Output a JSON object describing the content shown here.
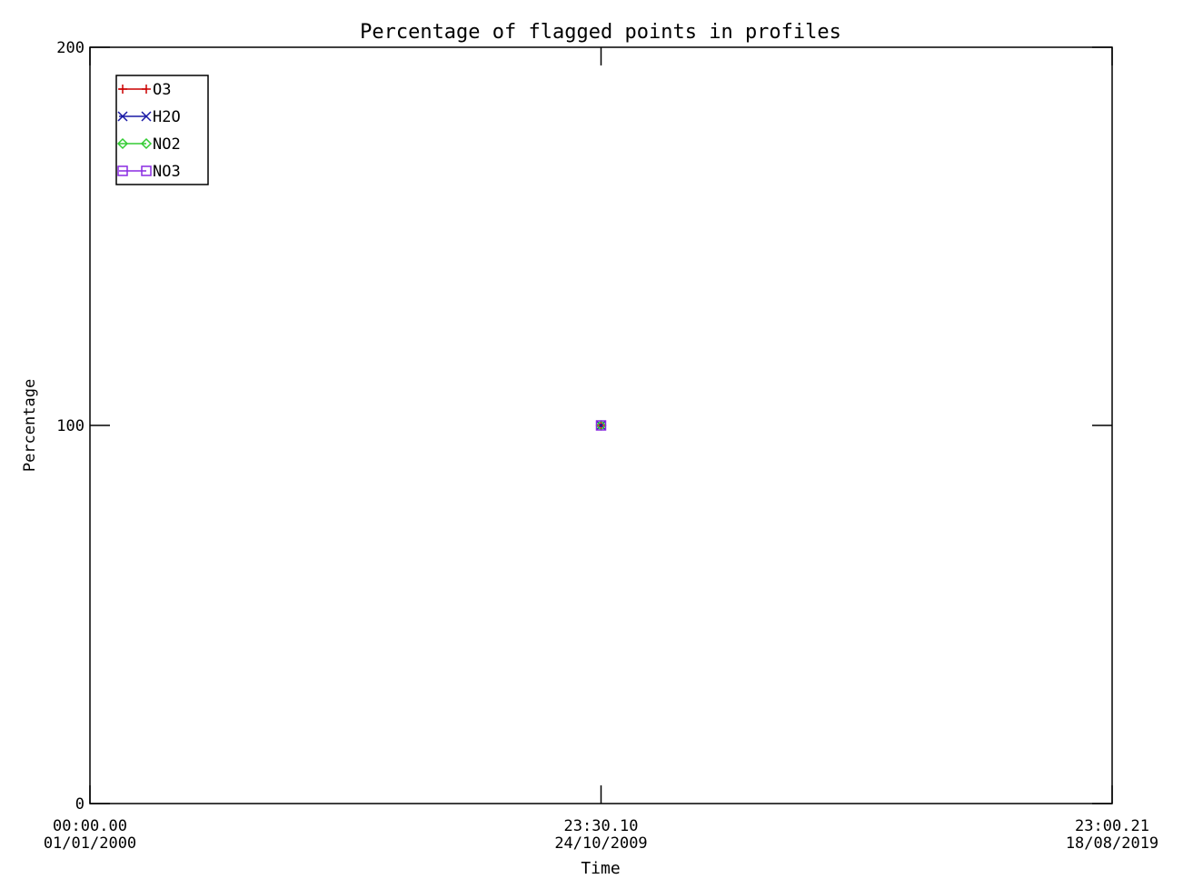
{
  "chart_data": {
    "type": "line",
    "title": "Percentage of flagged points in profiles",
    "xlabel": "Time",
    "ylabel": "Percentage",
    "xlim": [
      "01/01/2000 00:00.00",
      "18/08/2019 23:00.21"
    ],
    "ylim": [
      0,
      200
    ],
    "x_ticks": [
      {
        "time": "00:00.00",
        "date": "01/01/2000",
        "fraction": 0
      },
      {
        "time": "23:30.10",
        "date": "24/10/2009",
        "fraction": 0.5
      },
      {
        "time": "23:00.21",
        "date": "18/08/2019",
        "fraction": 1
      }
    ],
    "y_ticks": [
      0,
      100,
      200
    ],
    "grid": false,
    "legend_position": "top-left",
    "series": [
      {
        "name": "O3",
        "color": "#cc0000",
        "marker": "plus",
        "points": [
          {
            "x": "24/10/2009 23:30.10",
            "y": 100
          }
        ]
      },
      {
        "name": "H2O",
        "color": "#1a1aa6",
        "marker": "x",
        "points": [
          {
            "x": "24/10/2009 23:30.10",
            "y": 100
          }
        ]
      },
      {
        "name": "NO2",
        "color": "#33cc33",
        "marker": "diamond",
        "points": [
          {
            "x": "24/10/2009 23:30.10",
            "y": 100
          }
        ]
      },
      {
        "name": "NO3",
        "color": "#8a2be2",
        "marker": "square",
        "points": [
          {
            "x": "24/10/2009 23:30.10",
            "y": 100
          }
        ]
      }
    ]
  }
}
